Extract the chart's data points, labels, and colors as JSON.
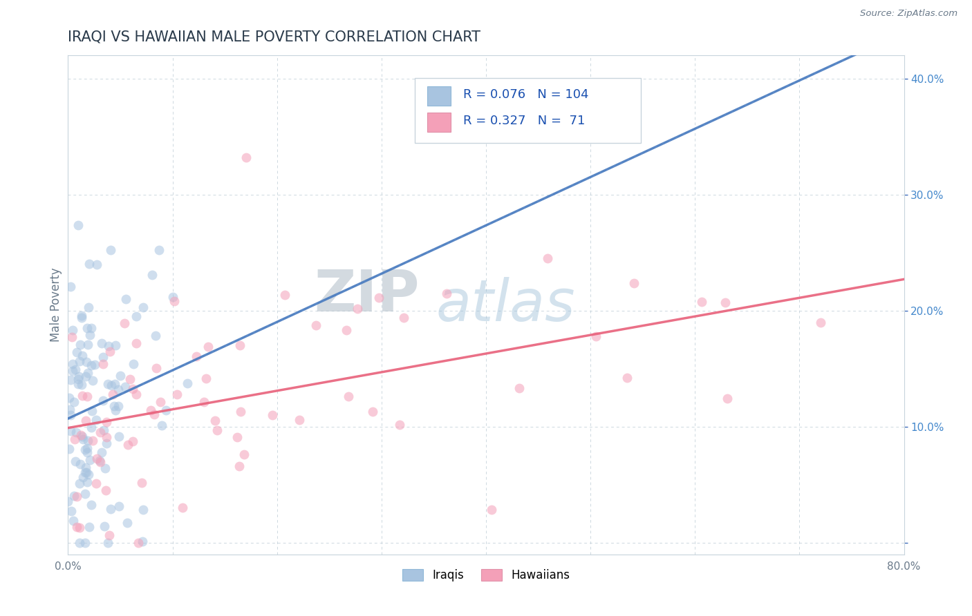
{
  "title": "IRAQI VS HAWAIIAN MALE POVERTY CORRELATION CHART",
  "source_text": "Source: ZipAtlas.com",
  "ylabel": "Male Poverty",
  "xlim": [
    0.0,
    0.8
  ],
  "ylim": [
    -0.01,
    0.42
  ],
  "x_ticks": [
    0.0,
    0.1,
    0.2,
    0.3,
    0.4,
    0.5,
    0.6,
    0.7,
    0.8
  ],
  "y_ticks": [
    0.0,
    0.1,
    0.2,
    0.3,
    0.4
  ],
  "iraqi_color": "#a8c4e0",
  "hawaiian_color": "#f4a0b8",
  "iraqi_line_color": "#4a7cc0",
  "iraqi_line_color2": "#8ab0d0",
  "hawaiian_line_color": "#e8607a",
  "legend_r1": "R = 0.076",
  "legend_n1": "N = 104",
  "legend_r2": "R = 0.327",
  "legend_n2": "N =  71",
  "watermark_zip": "ZIP",
  "watermark_atlas": "atlas",
  "watermark_color_dark": "#c5cfd8",
  "watermark_color_light": "#b8d0e8",
  "background_color": "#ffffff",
  "grid_color": "#c8d4dc",
  "title_color": "#2a3a4a",
  "axis_label_color": "#6a7a8a",
  "legend_r_color": "#1a50b0",
  "n_iraqi": 104,
  "n_hawaiian": 71,
  "R_iraqi": 0.076,
  "R_hawaiian": 0.327,
  "marker_size": 100,
  "marker_alpha": 0.55,
  "title_fontsize": 15,
  "axis_label_fontsize": 12,
  "tick_fontsize": 11,
  "legend_fontsize": 13
}
